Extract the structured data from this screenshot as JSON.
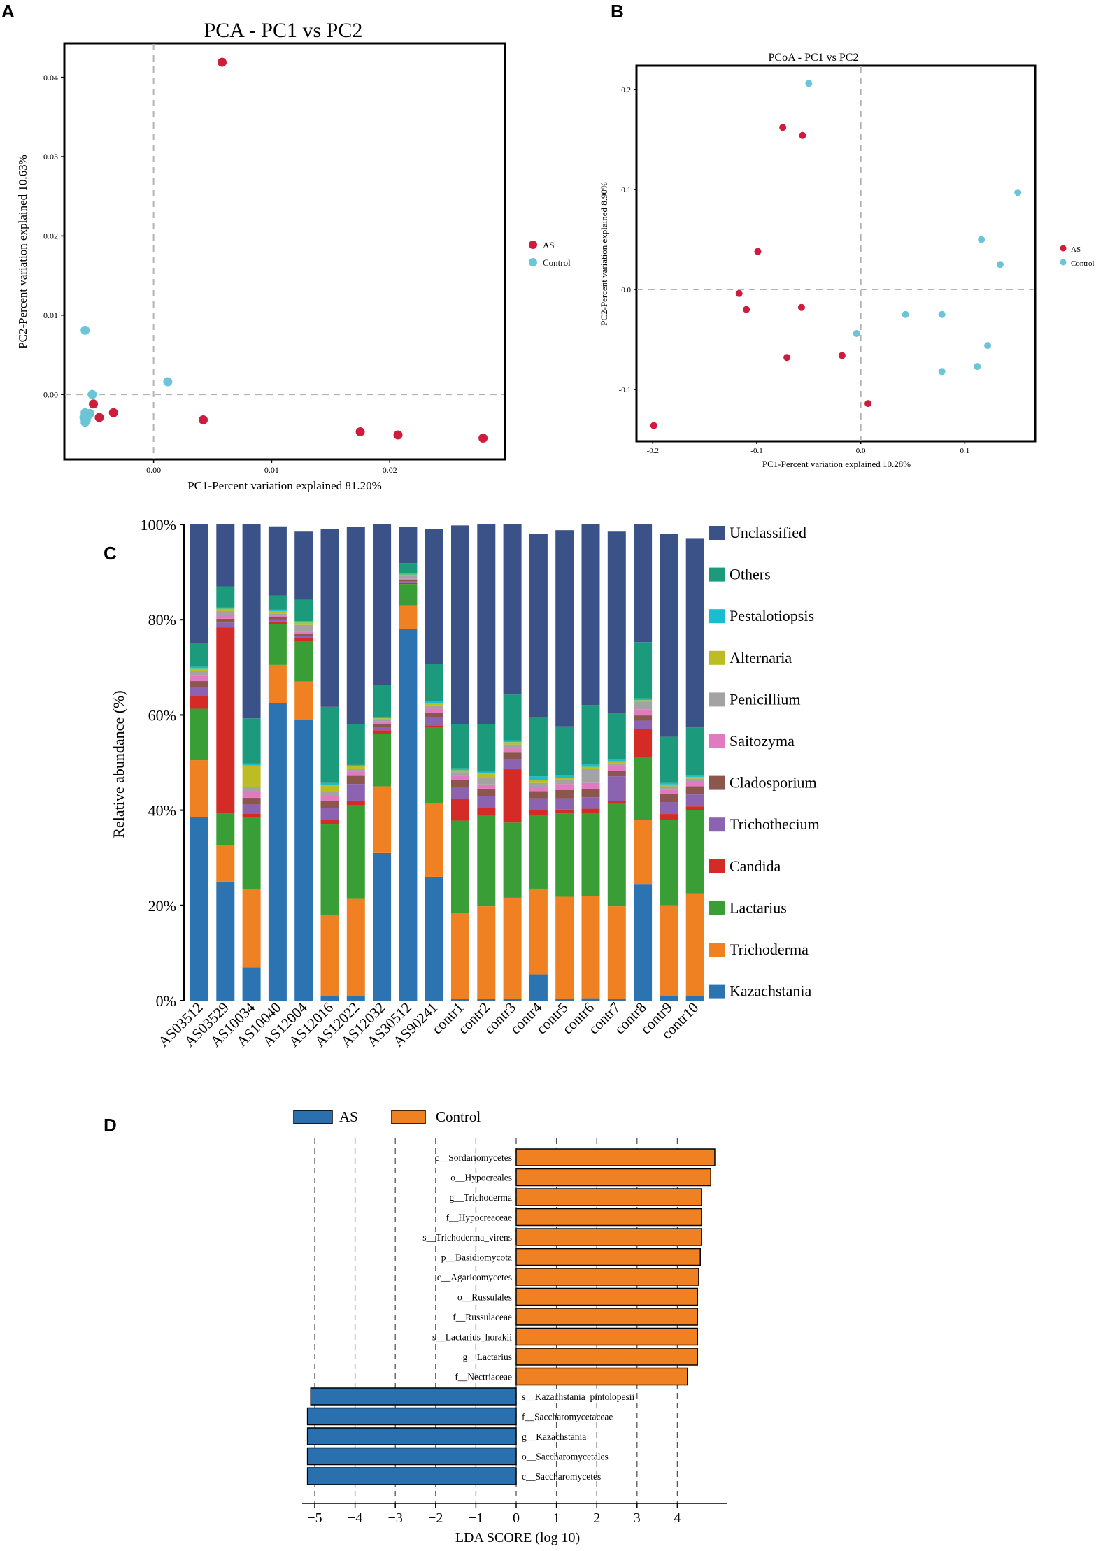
{
  "colors": {
    "as": "#d01c3c",
    "control": "#6cc5d6",
    "lda_as": "#2a6fae",
    "lda_control": "#f08122",
    "dash": "#b3b3b3",
    "frame": "#000000"
  },
  "chart_data": [
    {
      "panel": "A",
      "type": "scatter",
      "title": "PCA - PC1 vs PC2",
      "xlabel": "PC1-Percent variation explained 81.20%",
      "ylabel": "PC2-Percent variation explained 10.63%",
      "xlim": [
        -0.0075,
        0.0297
      ],
      "ylim": [
        -0.0081,
        0.0442
      ],
      "xticks": [
        {
          "v": 0.0,
          "label": "0.00"
        },
        {
          "v": 0.01,
          "label": "0.01"
        },
        {
          "v": 0.02,
          "label": "0.02"
        }
      ],
      "yticks": [
        {
          "v": 0.0,
          "label": "0.00"
        },
        {
          "v": 0.01,
          "label": "0.01"
        },
        {
          "v": 0.02,
          "label": "0.02"
        },
        {
          "v": 0.03,
          "label": "0.03"
        },
        {
          "v": 0.04,
          "label": "0.04"
        }
      ],
      "legend": [
        "AS",
        "Control"
      ],
      "series": [
        {
          "name": "AS",
          "points": [
            [
              0.0058,
              0.0419
            ],
            [
              -0.0051,
              -0.0012
            ],
            [
              -0.0046,
              -0.0029
            ],
            [
              -0.0034,
              -0.0023
            ],
            [
              0.0042,
              -0.0032
            ],
            [
              0.0175,
              -0.0047
            ],
            [
              0.0207,
              -0.0051
            ],
            [
              0.0279,
              -0.0055
            ]
          ]
        },
        {
          "name": "Control",
          "points": [
            [
              -0.0058,
              0.0081
            ],
            [
              0.0012,
              0.0016
            ],
            [
              -0.0052,
              0.0
            ],
            [
              -0.0058,
              -0.0023
            ],
            [
              -0.0054,
              -0.0024
            ],
            [
              -0.0056,
              -0.0027
            ],
            [
              -0.0059,
              -0.0029
            ],
            [
              -0.0057,
              -0.0032
            ],
            [
              -0.0058,
              -0.0035
            ]
          ]
        }
      ]
    },
    {
      "panel": "B",
      "type": "scatter",
      "title": "PCoA - PC1 vs PC2",
      "xlabel": "PC1-Percent variation explained 10.28%",
      "ylabel": "PC2-Percent variation explained 8.90%",
      "xlim": [
        -0.215,
        0.167
      ],
      "ylim": [
        -0.151,
        0.223
      ],
      "xticks": [
        {
          "v": -0.2,
          "label": "-0.2"
        },
        {
          "v": -0.1,
          "label": "-0.1"
        },
        {
          "v": 0.0,
          "label": "0.0"
        },
        {
          "v": 0.1,
          "label": "0.1"
        }
      ],
      "yticks": [
        {
          "v": 0.2,
          "label": "0.2"
        },
        {
          "v": 0.1,
          "label": "0.1"
        },
        {
          "v": 0.0,
          "label": "0.0"
        },
        {
          "v": -0.1,
          "label": "-0.1"
        }
      ],
      "legend": [
        "AS",
        "Control"
      ],
      "series": [
        {
          "name": "AS",
          "points": [
            [
              -0.075,
              0.162
            ],
            [
              -0.056,
              0.154
            ],
            [
              -0.099,
              0.038
            ],
            [
              -0.117,
              -0.004
            ],
            [
              -0.11,
              -0.02
            ],
            [
              -0.057,
              -0.018
            ],
            [
              -0.071,
              -0.068
            ],
            [
              -0.018,
              -0.066
            ],
            [
              0.007,
              -0.114
            ],
            [
              -0.199,
              -0.136
            ]
          ]
        },
        {
          "name": "Control",
          "points": [
            [
              -0.05,
              0.206
            ],
            [
              0.151,
              0.097
            ],
            [
              0.116,
              0.05
            ],
            [
              0.134,
              0.025
            ],
            [
              0.043,
              -0.025
            ],
            [
              0.078,
              -0.025
            ],
            [
              -0.004,
              -0.044
            ],
            [
              0.122,
              -0.056
            ],
            [
              0.112,
              -0.077
            ],
            [
              0.078,
              -0.082
            ]
          ]
        }
      ]
    },
    {
      "panel": "C",
      "type": "bar",
      "stacked": true,
      "ylabel": "Relative abundance (%)",
      "ylim": [
        0,
        100
      ],
      "yticks": [
        "0%",
        "20%",
        "40%",
        "60%",
        "80%",
        "100%"
      ],
      "categories": [
        "AS03512",
        "AS03529",
        "AS10034",
        "AS10040",
        "AS12004",
        "AS12016",
        "AS12022",
        "AS12032",
        "AS30512",
        "AS90241",
        "contr1",
        "contr2",
        "contr3",
        "contr4",
        "contr5",
        "contr6",
        "contr7",
        "contr8",
        "contr9",
        "contr10"
      ],
      "series": [
        {
          "name": "Kazachstania",
          "color": "#2c73b2",
          "values": [
            38.5,
            25,
            7,
            62.5,
            59,
            1,
            1,
            31,
            78,
            26,
            0.3,
            0.3,
            0.3,
            5.5,
            0.3,
            0.5,
            0.3,
            24.5,
            1,
            1
          ]
        },
        {
          "name": "Trichoderma",
          "color": "#f08122",
          "values": [
            12,
            7.7,
            16.4,
            8,
            8,
            17,
            20.5,
            14,
            5,
            15.5,
            18,
            19.5,
            21.3,
            18,
            21.5,
            21.5,
            19.5,
            13.5,
            19,
            21.5
          ]
        },
        {
          "name": "Lactarius",
          "color": "#3a9e36",
          "values": [
            10.8,
            6.6,
            15.2,
            8.5,
            8.5,
            19,
            19.5,
            11,
            4.5,
            16,
            19.5,
            19,
            15.8,
            15.5,
            17.5,
            17.5,
            21.5,
            13,
            18,
            17.5
          ]
        },
        {
          "name": "Candida",
          "color": "#d42b27",
          "values": [
            2.7,
            39.1,
            0.7,
            0.6,
            0.6,
            1,
            1,
            0.8,
            0.2,
            0.3,
            4.5,
            1.7,
            11.2,
            1,
            0.8,
            0.8,
            0.6,
            6,
            1.2,
            0.8
          ]
        },
        {
          "name": "Trichothecium",
          "color": "#8c63b0",
          "values": [
            1.9,
            1,
            1.9,
            0.5,
            0.5,
            2.5,
            3.5,
            0.7,
            0.3,
            1.7,
            2.5,
            2.5,
            2,
            2.5,
            2.4,
            2.4,
            5.2,
            1.8,
            2.5,
            2.5
          ]
        },
        {
          "name": "Cladosporium",
          "color": "#8b564c",
          "values": [
            1.2,
            0.8,
            1.4,
            0.4,
            0.4,
            1.5,
            1.7,
            0.6,
            0.3,
            0.9,
            1.5,
            1.5,
            1.5,
            1.5,
            1.7,
            1.7,
            1.2,
            1.1,
            1.7,
            1.7
          ]
        },
        {
          "name": "Saitozyma",
          "color": "#e17ac1",
          "values": [
            1.3,
            0.8,
            1.3,
            0.4,
            0.4,
            0.9,
            0.9,
            0.5,
            0.3,
            0.9,
            0.9,
            0.9,
            0.9,
            0.9,
            1.3,
            1.3,
            1.1,
            1.3,
            0.9,
            0.9
          ]
        },
        {
          "name": "Penicillium",
          "color": "#a3a3a3",
          "values": [
            0.9,
            0.8,
            0.9,
            0.4,
            1.5,
            0.9,
            0.6,
            0.4,
            0.6,
            0.7,
            0.8,
            1.3,
            0.8,
            0.8,
            0.9,
            3,
            0.5,
            1.5,
            0.7,
            0.7
          ]
        },
        {
          "name": "Alternaria",
          "color": "#bcbd22",
          "values": [
            0.5,
            0.5,
            4.6,
            0.5,
            0.5,
            1.4,
            0.5,
            0.3,
            0.3,
            0.5,
            0.4,
            1,
            0.5,
            0.6,
            0.4,
            0.4,
            0.4,
            0.4,
            0.4,
            0.4
          ]
        },
        {
          "name": "Pestalotiopsis",
          "color": "#17becf",
          "values": [
            0.3,
            0.3,
            0.4,
            0.3,
            0.3,
            0.5,
            0.3,
            0.2,
            0.2,
            0.3,
            0.4,
            0.4,
            0.4,
            0.8,
            0.6,
            0.6,
            0.5,
            0.4,
            0.3,
            0.4
          ]
        },
        {
          "name": "Others",
          "color": "#1b9a7c",
          "values": [
            5,
            4.4,
            9.5,
            3,
            4.5,
            16,
            8.5,
            6.8,
            2.2,
            7.9,
            9.3,
            10,
            9.6,
            12.5,
            10.2,
            12.4,
            9.5,
            11.8,
            9.7,
            10
          ]
        },
        {
          "name": "Unclassified",
          "color": "#3b5288",
          "values": [
            24.9,
            13,
            40.7,
            14.5,
            14.3,
            37.4,
            41.5,
            33.7,
            7.6,
            28.3,
            41.7,
            41.9,
            35.7,
            38.4,
            41.2,
            37.9,
            38.2,
            24.7,
            42.6,
            39.6
          ]
        }
      ]
    },
    {
      "panel": "D",
      "type": "bar",
      "orientation": "horizontal",
      "xlabel": "LDA SCORE (log 10)",
      "xlim": [
        -5.25,
        4.9
      ],
      "xticks": [
        -5,
        -4,
        -3,
        -2,
        -1,
        0,
        1,
        2,
        3,
        4
      ],
      "legend": [
        "AS",
        "Control"
      ],
      "bars": [
        {
          "label": "c__Sordariomycetes",
          "value": 4.93,
          "group": "Control"
        },
        {
          "label": "o__Hypocreales",
          "value": 4.83,
          "group": "Control"
        },
        {
          "label": "g__Trichoderma",
          "value": 4.6,
          "group": "Control"
        },
        {
          "label": "f__Hypocreaceae",
          "value": 4.6,
          "group": "Control"
        },
        {
          "label": "s__Trichoderma_virens",
          "value": 4.6,
          "group": "Control"
        },
        {
          "label": "p__Basidiomycota",
          "value": 4.57,
          "group": "Control"
        },
        {
          "label": "c__Agaricomycetes",
          "value": 4.53,
          "group": "Control"
        },
        {
          "label": "o__Russulales",
          "value": 4.5,
          "group": "Control"
        },
        {
          "label": "f__Russulaceae",
          "value": 4.5,
          "group": "Control"
        },
        {
          "label": "s__Lactarius_horakii",
          "value": 4.5,
          "group": "Control"
        },
        {
          "label": "g__Lactarius",
          "value": 4.5,
          "group": "Control"
        },
        {
          "label": "f__Nectriaceae",
          "value": 4.25,
          "group": "Control"
        },
        {
          "label": "s__Kazachstania_pintolopesii",
          "value": -5.1,
          "group": "AS"
        },
        {
          "label": "f__Saccharomycetaceae",
          "value": -5.18,
          "group": "AS"
        },
        {
          "label": "g__Kazachstania",
          "value": -5.18,
          "group": "AS"
        },
        {
          "label": "o__Saccharomycetales",
          "value": -5.18,
          "group": "AS"
        },
        {
          "label": "c__Saccharomycetes",
          "value": -5.18,
          "group": "AS"
        }
      ]
    }
  ]
}
